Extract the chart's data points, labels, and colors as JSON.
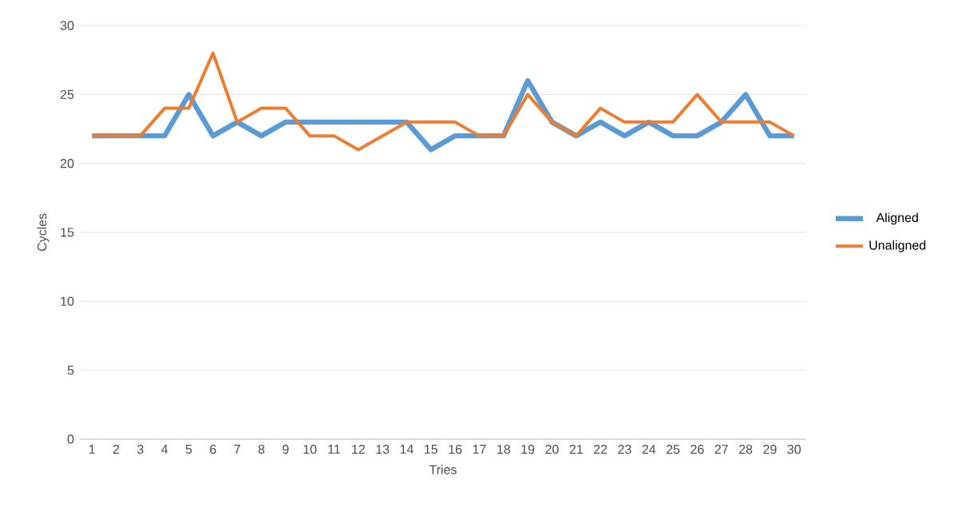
{
  "chart_data": {
    "type": "line",
    "xlabel": "Tries",
    "ylabel": "Cycles",
    "categories": [
      "1",
      "2",
      "3",
      "4",
      "5",
      "6",
      "7",
      "8",
      "9",
      "10",
      "11",
      "12",
      "13",
      "14",
      "15",
      "16",
      "17",
      "18",
      "19",
      "20",
      "21",
      "22",
      "23",
      "24",
      "25",
      "26",
      "27",
      "28",
      "29",
      "30"
    ],
    "series": [
      {
        "name": "Aligned",
        "color": "#5b9bd5",
        "values": [
          22,
          22,
          22,
          22,
          25,
          22,
          23,
          22,
          23,
          23,
          23,
          23,
          23,
          23,
          21,
          22,
          22,
          22,
          26,
          23,
          22,
          23,
          22,
          23,
          22,
          22,
          23,
          25,
          22,
          22
        ]
      },
      {
        "name": "Unaligned",
        "color": "#ed7d31",
        "values": [
          22,
          22,
          22,
          24,
          24,
          28,
          23,
          24,
          24,
          22,
          22,
          21,
          22,
          23,
          23,
          23,
          22,
          22,
          25,
          23,
          22,
          24,
          23,
          23,
          23,
          25,
          23,
          23,
          23,
          22
        ]
      }
    ],
    "ylim": [
      0,
      30
    ],
    "yticks": [
      0,
      5,
      10,
      15,
      20,
      25,
      30
    ],
    "grid": "y",
    "legend": "right",
    "marker": "none",
    "line_style": "solid"
  }
}
